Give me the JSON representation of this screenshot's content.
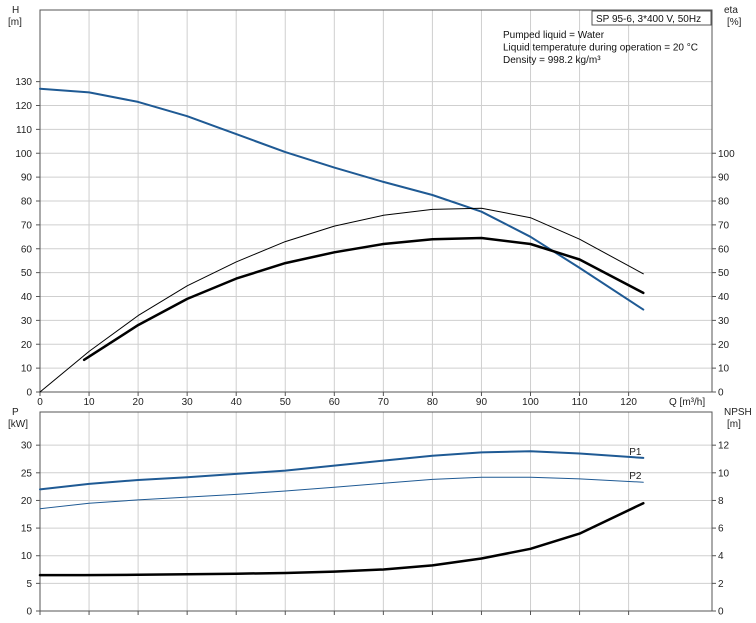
{
  "chart_data": [
    {
      "type": "line",
      "title": "SP 95-6, 3*400 V, 50Hz",
      "notes": [
        "Pumped liquid = Water",
        "Liquid temperature during operation = 20 °C",
        "Density = 998.2 kg/m³"
      ],
      "xlabel": "Q [m³/h]",
      "xlim": [
        0,
        137
      ],
      "x_ticks": [
        0,
        10,
        20,
        30,
        40,
        50,
        60,
        70,
        80,
        90,
        100,
        110,
        120
      ],
      "left_axis": {
        "label_line1": "H",
        "label_line2": "[m]",
        "lim": [
          0,
          160
        ],
        "ticks": [
          0,
          10,
          20,
          30,
          40,
          50,
          60,
          70,
          80,
          90,
          100,
          110,
          120,
          130
        ]
      },
      "right_axis": {
        "label_line1": "eta",
        "label_line2": "[%]",
        "lim": [
          0,
          160
        ],
        "ticks": [
          0,
          10,
          20,
          30,
          40,
          50,
          60,
          70,
          80,
          90,
          100
        ]
      },
      "grid": true,
      "series": [
        {
          "axis": "left",
          "color": "#1f5a94",
          "width": 2,
          "x": [
            0,
            10,
            20,
            30,
            40,
            50,
            60,
            70,
            80,
            90,
            100,
            110,
            123
          ],
          "y": [
            127,
            125.5,
            121.5,
            115.5,
            108,
            100.5,
            94,
            88,
            82.5,
            75.5,
            65,
            52,
            34.5
          ]
        },
        {
          "axis": "right",
          "color": "#000000",
          "width": 1,
          "x": [
            0,
            10,
            20,
            30,
            40,
            50,
            60,
            70,
            80,
            90,
            100,
            110,
            123
          ],
          "y": [
            0,
            17,
            32,
            44.5,
            54.5,
            63,
            69.5,
            74,
            76.5,
            77,
            73,
            64,
            49.5
          ]
        },
        {
          "axis": "right",
          "color": "#000000",
          "width": 2.5,
          "x": [
            9,
            20,
            30,
            40,
            50,
            60,
            70,
            80,
            90,
            100,
            110,
            123
          ],
          "y": [
            13.5,
            28,
            39,
            47.5,
            54,
            58.5,
            62,
            64,
            64.5,
            62,
            55.5,
            41.5
          ]
        }
      ]
    },
    {
      "type": "line",
      "xlim": [
        0,
        137
      ],
      "left_axis": {
        "label_line1": "P",
        "label_line2": "[kW]",
        "lim": [
          0,
          36
        ],
        "ticks": [
          0,
          5,
          10,
          15,
          20,
          25,
          30
        ]
      },
      "right_axis": {
        "label_line1": "NPSH",
        "label_line2": "[m]",
        "lim": [
          0,
          14.4
        ],
        "ticks": [
          0,
          2,
          4,
          6,
          8,
          10,
          12
        ]
      },
      "grid": true,
      "series": [
        {
          "name": "P1",
          "axis": "left",
          "color": "#1f5a94",
          "width": 2,
          "x": [
            0,
            10,
            20,
            30,
            40,
            50,
            60,
            70,
            80,
            90,
            100,
            110,
            123
          ],
          "y": [
            22,
            23,
            23.7,
            24.2,
            24.8,
            25.4,
            26.3,
            27.2,
            28.1,
            28.7,
            28.9,
            28.5,
            27.7
          ]
        },
        {
          "name": "P2",
          "axis": "left",
          "color": "#1f5a94",
          "width": 1,
          "x": [
            0,
            10,
            20,
            30,
            40,
            50,
            60,
            70,
            80,
            90,
            100,
            110,
            123
          ],
          "y": [
            18.5,
            19.5,
            20.1,
            20.6,
            21.1,
            21.7,
            22.4,
            23.1,
            23.8,
            24.2,
            24.2,
            23.9,
            23.3
          ]
        },
        {
          "axis": "right",
          "color": "#000000",
          "width": 2.5,
          "x": [
            0,
            9,
            20,
            30,
            40,
            50,
            60,
            70,
            80,
            90,
            100,
            110,
            123
          ],
          "y": [
            2.6,
            2.6,
            2.62,
            2.66,
            2.7,
            2.75,
            2.85,
            3,
            3.3,
            3.8,
            4.5,
            5.6,
            7.8
          ]
        }
      ]
    }
  ]
}
